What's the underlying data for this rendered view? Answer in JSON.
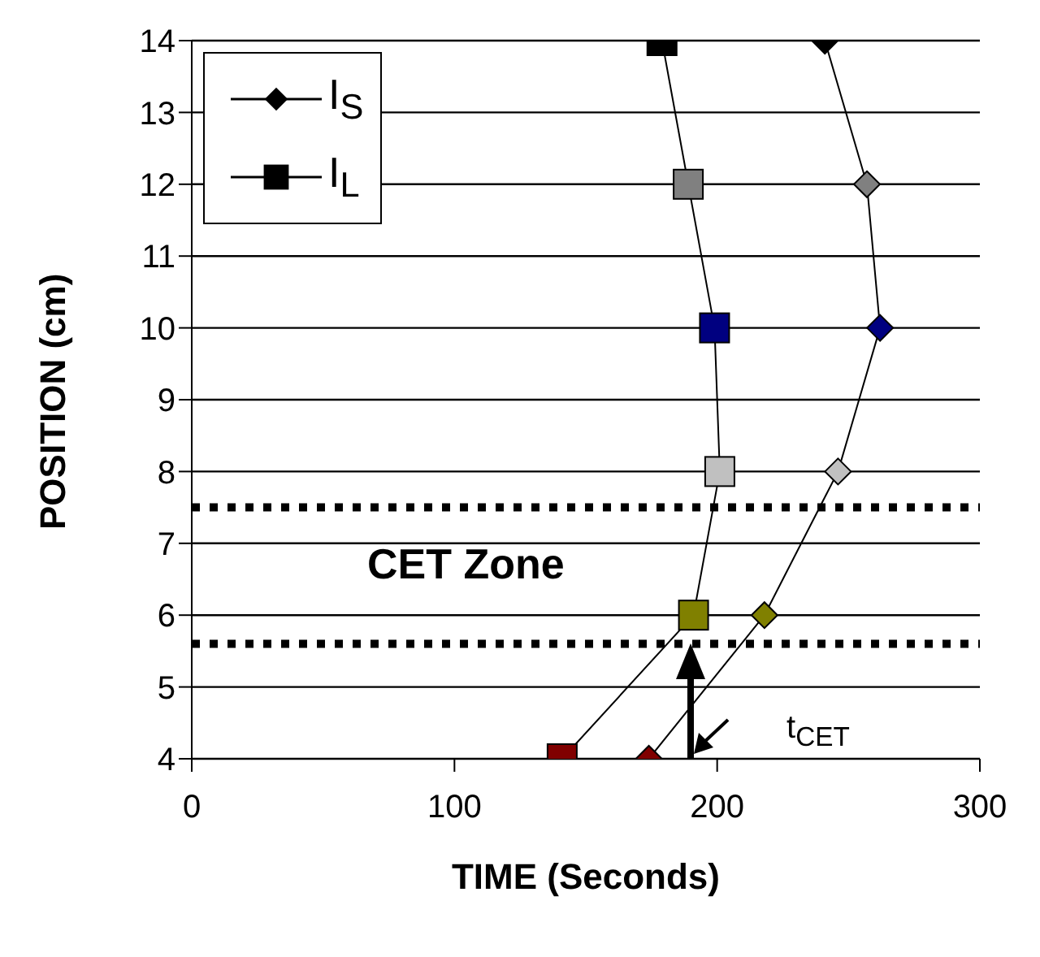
{
  "chart_data": {
    "type": "line",
    "xlabel": "TIME (Seconds)",
    "ylabel": "POSITION (cm)",
    "series": [
      {
        "name": "I$_{S}$",
        "color": "#000000",
        "marker": "diamond",
        "x": [
          174,
          218,
          246,
          262,
          257,
          241
        ],
        "values": [
          4,
          6,
          8,
          10,
          12,
          14
        ],
        "colors": [
          "#800000",
          "#808000",
          "#c0c0c0",
          "#000080",
          "#808080",
          "#000000"
        ]
      },
      {
        "name": "I$_{L}$",
        "color": "#000000",
        "marker": "square",
        "x": [
          141,
          191,
          201,
          199,
          189,
          179
        ],
        "values": [
          4,
          6,
          8,
          10,
          12,
          14
        ],
        "colors": [
          "#800000",
          "#808000",
          "#c0c0c0",
          "#000080",
          "#808080",
          "#000000"
        ]
      }
    ],
    "xlim": [
      0,
      300
    ],
    "xticks": [
      0,
      100,
      200,
      300
    ],
    "ylim": [
      4,
      14
    ],
    "yticks": [
      4,
      5,
      6,
      7,
      8,
      9,
      10,
      11,
      12,
      13,
      14
    ],
    "grid": "y",
    "legend": "top left",
    "ref_lines": [
      {
        "axis": "y",
        "value": 7.5,
        "color": "#000000",
        "line_style": "dotted"
      },
      {
        "axis": "y",
        "value": 5.6,
        "color": "#000000",
        "line_style": "dotted"
      }
    ],
    "annotations": [
      "CET Zone",
      "t$_{CET}$"
    ]
  }
}
